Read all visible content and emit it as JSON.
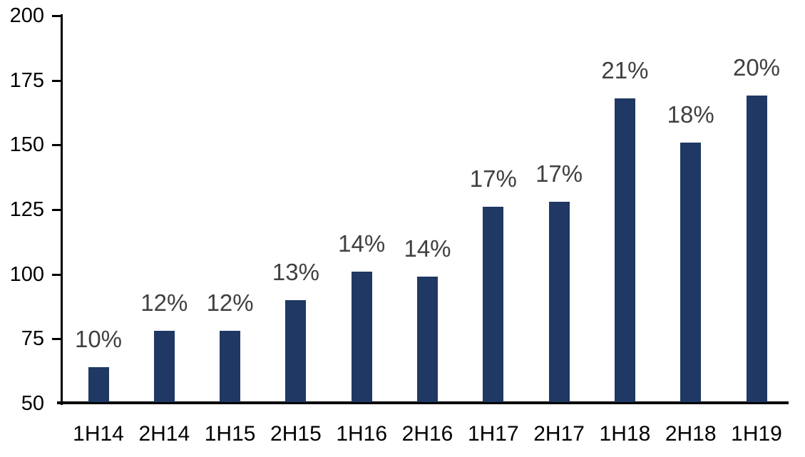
{
  "chart_data": {
    "type": "bar",
    "title": "",
    "xlabel": "",
    "ylabel": "",
    "categories": [
      "1H14",
      "2H14",
      "1H15",
      "2H15",
      "1H16",
      "2H16",
      "1H17",
      "2H17",
      "1H18",
      "2H18",
      "1H19"
    ],
    "values": [
      64,
      78,
      78,
      90,
      101,
      99,
      126,
      128,
      168,
      151,
      169
    ],
    "data_labels": [
      "10%",
      "12%",
      "12%",
      "13%",
      "14%",
      "14%",
      "17%",
      "17%",
      "21%",
      "18%",
      "20%"
    ],
    "ylim": [
      50,
      200
    ],
    "y_ticks": [
      200,
      175,
      150,
      125,
      100,
      75,
      50
    ],
    "grid": "off",
    "legend": "none",
    "colors": {
      "bar": "#1F3864",
      "data_label": "#404040",
      "axis_text": "#000000",
      "axis_line": "#000000",
      "background": "#FFFFFF"
    }
  }
}
